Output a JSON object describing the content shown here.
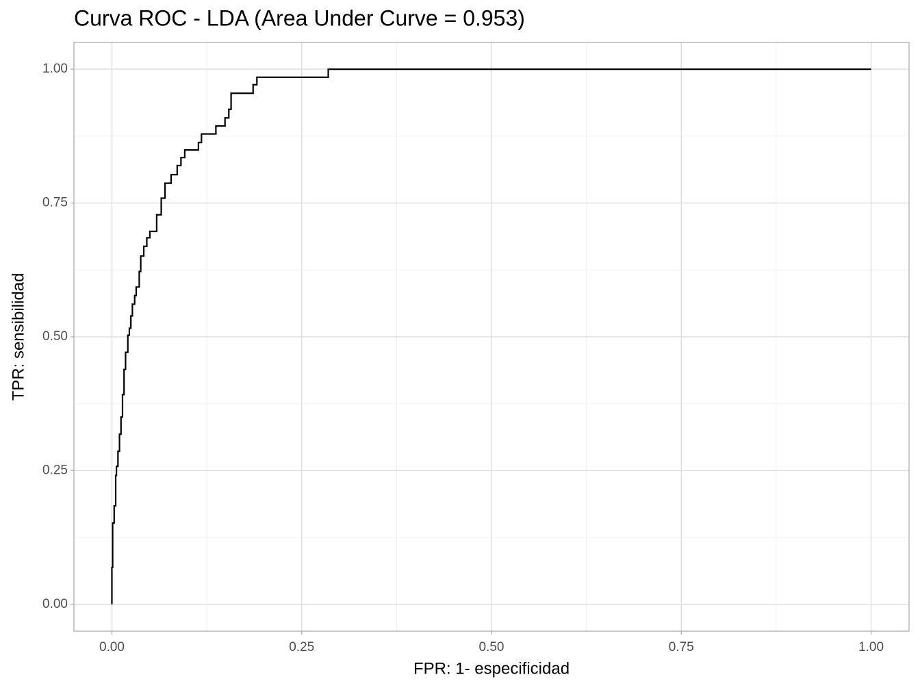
{
  "chart_data": {
    "type": "line",
    "title": "Curva ROC - LDA (Area Under Curve = 0.953)",
    "x_label": "FPR: 1- especificidad",
    "y_label": "TPR: sensibilidad",
    "color": "#000000",
    "grid": true,
    "xlim": [
      -0.05,
      1.05
    ],
    "ylim": [
      -0.05,
      1.05
    ],
    "xticks": [
      {
        "value": 0,
        "label": "0.00"
      },
      {
        "value": 0.25,
        "label": "0.25"
      },
      {
        "value": 0.5,
        "label": "0.50"
      },
      {
        "value": 0.75,
        "label": "0.75"
      },
      {
        "value": 1,
        "label": "1.00"
      }
    ],
    "yticks": [
      {
        "value": 0,
        "label": "0.00"
      },
      {
        "value": 0.25,
        "label": "0.25"
      },
      {
        "value": 0.5,
        "label": "0.50"
      },
      {
        "value": 0.75,
        "label": "0.75"
      },
      {
        "value": 1,
        "label": "1.00"
      }
    ],
    "xminor": [
      0.125,
      0.375,
      0.625,
      0.875
    ],
    "yminor": [
      0.125,
      0.375,
      0.625,
      0.875
    ],
    "x": [
      0,
      0,
      0.001,
      0.001,
      0.003,
      0.003,
      0.005,
      0.005,
      0.006,
      0.006,
      0.008,
      0.008,
      0.01,
      0.01,
      0.012,
      0.012,
      0.014,
      0.014,
      0.016,
      0.016,
      0.018,
      0.018,
      0.021,
      0.021,
      0.023,
      0.023,
      0.025,
      0.025,
      0.027,
      0.027,
      0.03,
      0.03,
      0.032,
      0.032,
      0.036,
      0.036,
      0.038,
      0.038,
      0.042,
      0.042,
      0.046,
      0.046,
      0.05,
      0.05,
      0.059,
      0.059,
      0.065,
      0.065,
      0.07,
      0.07,
      0.078,
      0.078,
      0.086,
      0.086,
      0.091,
      0.091,
      0.096,
      0.096,
      0.114,
      0.114,
      0.118,
      0.118,
      0.137,
      0.137,
      0.149,
      0.149,
      0.154,
      0.154,
      0.157,
      0.157,
      0.186,
      0.186,
      0.191,
      0.191,
      0.285,
      0.285,
      1
    ],
    "values": [
      0,
      0.069,
      0.069,
      0.152,
      0.152,
      0.184,
      0.184,
      0.241,
      0.241,
      0.258,
      0.258,
      0.286,
      0.286,
      0.318,
      0.318,
      0.35,
      0.35,
      0.392,
      0.392,
      0.439,
      0.439,
      0.471,
      0.471,
      0.503,
      0.503,
      0.516,
      0.516,
      0.539,
      0.539,
      0.561,
      0.561,
      0.577,
      0.577,
      0.593,
      0.593,
      0.622,
      0.622,
      0.651,
      0.651,
      0.669,
      0.669,
      0.685,
      0.685,
      0.697,
      0.697,
      0.728,
      0.728,
      0.759,
      0.759,
      0.787,
      0.787,
      0.803,
      0.803,
      0.82,
      0.82,
      0.835,
      0.835,
      0.849,
      0.849,
      0.863,
      0.863,
      0.879,
      0.879,
      0.894,
      0.894,
      0.909,
      0.909,
      0.925,
      0.925,
      0.955,
      0.955,
      0.971,
      0.971,
      0.985,
      0.985,
      1,
      1
    ]
  }
}
